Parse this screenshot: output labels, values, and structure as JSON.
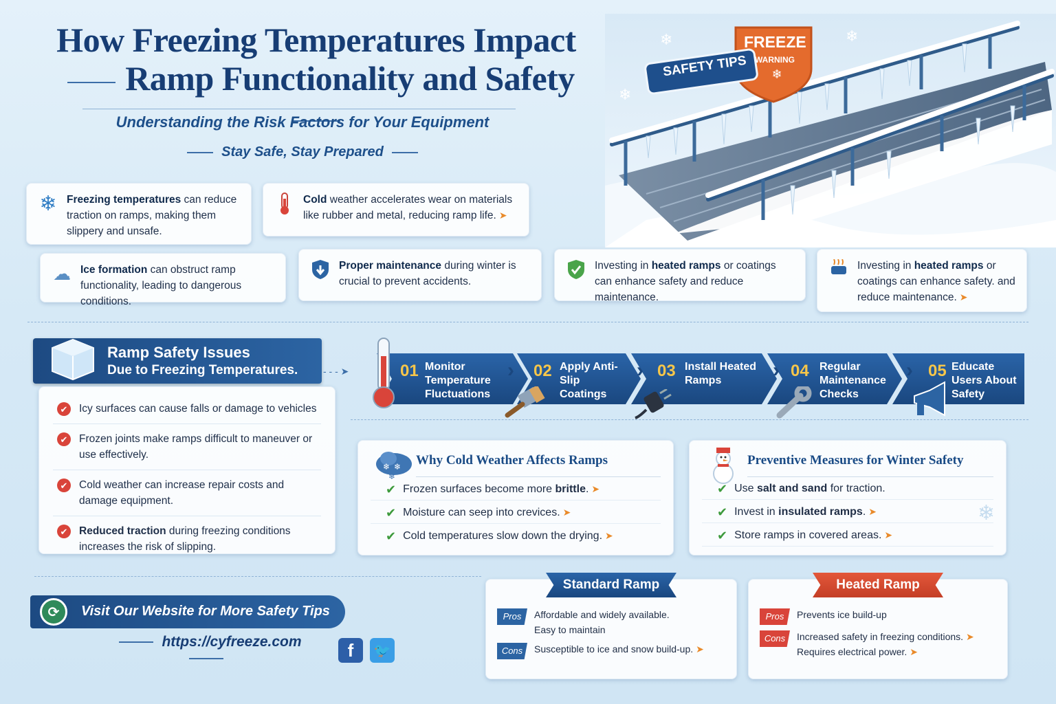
{
  "header": {
    "title_line1": "How Freezing Temperatures Impact",
    "title_line2": "Ramp Functionality and Safety",
    "subtitle": "Understanding the Risk Factors for Your Equipment",
    "tagline": "Stay Safe, Stay Prepared"
  },
  "scene": {
    "badge_safety": "SAFETY TIPS",
    "badge_freeze": "FREEZE",
    "badge_warning": "WARNING"
  },
  "facts": [
    {
      "bold": "Freezing temperatures",
      "text": " can reduce traction on ramps, making them slippery and unsafe.",
      "icon": "snowflake-icon"
    },
    {
      "bold": "Cold",
      "text": " weather accelerates wear on materials like rubber and metal, reducing ramp life.",
      "icon": "thermometer-icon"
    },
    {
      "bold": "Ice formation",
      "text": " can obstruct ramp functionality, leading to dangerous conditions.",
      "icon": "ice-cloud-icon"
    },
    {
      "bold": "Proper maintenance",
      "text": " during winter is crucial to prevent accidents.",
      "icon": "shield-icon"
    },
    {
      "pre": "Investing in ",
      "bold": "heated ramps",
      "text": " or coatings can enhance safety and reduce maintenance.",
      "icon": "green-shield-icon"
    },
    {
      "pre": "Investing in ",
      "bold": "heated ramps",
      "text": " or coatings can enhance safety. and reduce maintenance.",
      "icon": "heater-icon"
    }
  ],
  "issues_section": {
    "title_line1": "Ramp Safety Issues",
    "title_line2": "Due to Freezing Temperatures.",
    "items": [
      {
        "bold": "",
        "text": "Icy surfaces can cause falls or damage to vehicles"
      },
      {
        "bold": "",
        "text": "Frozen joints make ramps difficult to maneuver or use effectively."
      },
      {
        "bold": "",
        "text": "Cold weather can increase repair costs and damage equipment."
      },
      {
        "bold": "Reduced traction",
        "text": " during freezing conditions increases the risk of slipping."
      }
    ]
  },
  "steps": [
    {
      "num": "01",
      "label": "Monitor Temperature Fluctuations"
    },
    {
      "num": "02",
      "label": "Apply Anti-Slip Coatings"
    },
    {
      "num": "03",
      "label": "Install Heated Ramps"
    },
    {
      "num": "04",
      "label": "Regular Maintenance Checks"
    },
    {
      "num": "05",
      "label": "Educate Users About Safety"
    }
  ],
  "why_panel": {
    "title": "Why Cold Weather Affects Ramps",
    "items": [
      {
        "text": "Frozen surfaces become more ",
        "bold": "brittle",
        "tail": "."
      },
      {
        "text": "Moisture can seep into crevices.",
        "bold": "",
        "tail": ""
      },
      {
        "text": "Cold temperatures slow down the drying.",
        "bold": "",
        "tail": ""
      }
    ]
  },
  "prevent_panel": {
    "title": "Preventive Measures for Winter Safety",
    "items": [
      {
        "pre": "Use ",
        "bold": "salt and sand",
        "tail": " for traction."
      },
      {
        "pre": "Invest in ",
        "bold": "insulated ramps",
        "tail": "."
      },
      {
        "pre": "Store ramps in covered areas.",
        "bold": "",
        "tail": ""
      }
    ]
  },
  "website": {
    "banner": "Visit Our Website for More Safety Tips",
    "url": "https://cyfreeze.com",
    "social": [
      "f",
      "t"
    ]
  },
  "compare": {
    "standard": {
      "title": "Standard Ramp",
      "pros_tag": "Pros",
      "pros": [
        "Affordable and widely available.",
        "Easy to maintain"
      ],
      "cons_tag": "Cons",
      "cons": [
        "Susceptible to ice and snow build-up."
      ]
    },
    "heated": {
      "title": "Heated Ramp",
      "pros_tag": "Pros",
      "pros": [
        "Prevents ice build-up"
      ],
      "cons_tag": "Cons",
      "cons": [
        "Increased safety in freezing conditions.",
        "Requires electrical power."
      ]
    }
  },
  "colors": {
    "navy": "#1a477f",
    "accent_orange": "#e98a2a",
    "red": "#d9443a",
    "green": "#3d9a3c"
  }
}
